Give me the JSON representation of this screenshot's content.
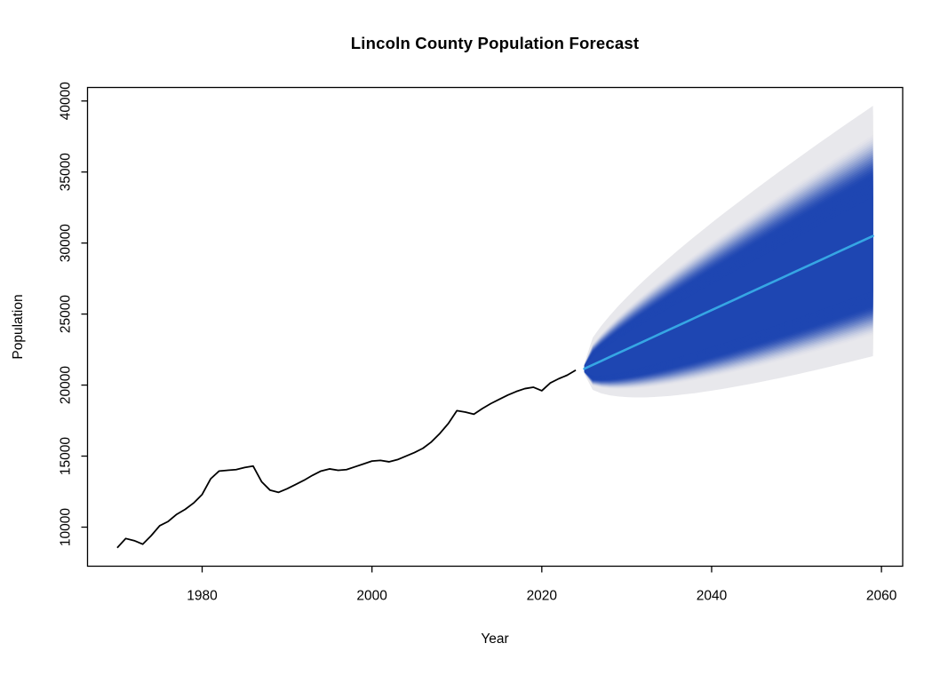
{
  "chart_data": {
    "type": "line",
    "title": "Lincoln County Population Forecast",
    "xlabel": "Year",
    "ylabel": "Population",
    "xlim": [
      1966.5,
      2062.5
    ],
    "ylim": [
      7250,
      40950
    ],
    "x_ticks": [
      1980,
      2000,
      2020,
      2040,
      2060
    ],
    "y_ticks": [
      10000,
      15000,
      20000,
      25000,
      30000,
      35000,
      40000
    ],
    "grid": false,
    "legend": "none",
    "colors": {
      "history_line": "#000000",
      "median_line": "#36a6e4",
      "fan_core": "#1e46b2",
      "fan_outer": "#e8e8ec",
      "axis": "#000000",
      "background": "#ffffff"
    },
    "series": [
      {
        "name": "historical-population",
        "x": [
          1970,
          1971,
          1972,
          1973,
          1974,
          1975,
          1976,
          1977,
          1978,
          1979,
          1980,
          1981,
          1982,
          1983,
          1984,
          1985,
          1986,
          1987,
          1988,
          1989,
          1990,
          1991,
          1992,
          1993,
          1994,
          1995,
          1996,
          1997,
          1998,
          1999,
          2000,
          2001,
          2002,
          2003,
          2004,
          2005,
          2006,
          2007,
          2008,
          2009,
          2010,
          2011,
          2012,
          2013,
          2014,
          2015,
          2016,
          2017,
          2018,
          2019,
          2020,
          2021,
          2022,
          2023,
          2024
        ],
        "y": [
          8550,
          9200,
          9050,
          8800,
          9400,
          10100,
          10400,
          10900,
          11250,
          11700,
          12300,
          13400,
          13950,
          14000,
          14050,
          14200,
          14300,
          13200,
          12600,
          12450,
          12700,
          13000,
          13300,
          13650,
          13950,
          14100,
          14000,
          14050,
          14250,
          14450,
          14650,
          14700,
          14600,
          14750,
          15000,
          15250,
          15550,
          16000,
          16600,
          17300,
          18200,
          18100,
          17950,
          18350,
          18700,
          19000,
          19300,
          19550,
          19750,
          19850,
          19600,
          20150,
          20450,
          20700,
          21050
        ]
      },
      {
        "name": "forecast-median",
        "x": [
          2025,
          2026,
          2027,
          2028,
          2029,
          2030,
          2031,
          2032,
          2033,
          2034,
          2035,
          2036,
          2037,
          2038,
          2039,
          2040,
          2041,
          2042,
          2043,
          2044,
          2045,
          2046,
          2047,
          2048,
          2049,
          2050,
          2051,
          2052,
          2053,
          2054,
          2055,
          2056,
          2057,
          2058,
          2059
        ],
        "y": [
          21150,
          21425,
          21700,
          21975,
          22250,
          22525,
          22800,
          23075,
          23350,
          23625,
          23900,
          24175,
          24450,
          24725,
          25000,
          25275,
          25550,
          25825,
          26100,
          26375,
          26650,
          26925,
          27200,
          27475,
          27750,
          28025,
          28300,
          28575,
          28850,
          29125,
          29400,
          29675,
          29950,
          30225,
          30500
        ]
      }
    ],
    "bands": [
      {
        "name": "forecast-outer-interval",
        "x": [
          2025,
          2026,
          2027,
          2028,
          2029,
          2030,
          2031,
          2032,
          2033,
          2034,
          2035,
          2036,
          2037,
          2038,
          2039,
          2040,
          2041,
          2042,
          2043,
          2044,
          2045,
          2046,
          2047,
          2048,
          2049,
          2050,
          2051,
          2052,
          2053,
          2054,
          2055,
          2056,
          2057,
          2058,
          2059
        ],
        "upper": [
          21500,
          23340,
          24170,
          24890,
          25560,
          26180,
          26780,
          27350,
          27900,
          28430,
          28950,
          29470,
          29970,
          30460,
          30940,
          31420,
          31890,
          32350,
          32810,
          33260,
          33710,
          34160,
          34600,
          35040,
          35470,
          35900,
          36330,
          36760,
          37180,
          37600,
          38020,
          38430,
          38840,
          39250,
          39660
        ],
        "lower": [
          20800,
          19660,
          19420,
          19280,
          19200,
          19150,
          19130,
          19130,
          19150,
          19190,
          19230,
          19290,
          19360,
          19430,
          19520,
          19610,
          19700,
          19800,
          19910,
          20020,
          20130,
          20250,
          20370,
          20490,
          20620,
          20750,
          20890,
          21020,
          21160,
          21300,
          21450,
          21590,
          21740,
          21890,
          22040
        ]
      },
      {
        "name": "forecast-core-interval",
        "x": [
          2025,
          2026,
          2027,
          2028,
          2029,
          2030,
          2031,
          2032,
          2033,
          2034,
          2035,
          2036,
          2037,
          2038,
          2039,
          2040,
          2041,
          2042,
          2043,
          2044,
          2045,
          2046,
          2047,
          2048,
          2049,
          2050,
          2051,
          2052,
          2053,
          2054,
          2055,
          2056,
          2057,
          2058,
          2059
        ],
        "upper": [
          21300,
          22000,
          22440,
          22850,
          23250,
          23630,
          24000,
          24360,
          24720,
          25070,
          25420,
          25770,
          26110,
          26450,
          26790,
          27130,
          27460,
          27790,
          28120,
          28450,
          28780,
          29100,
          29430,
          29750,
          30080,
          30400,
          30720,
          31040,
          31360,
          31680,
          32000,
          32310,
          32630,
          32950,
          33260
        ],
        "lower": [
          21000,
          20620,
          20660,
          20740,
          20850,
          20980,
          21120,
          21270,
          21430,
          21590,
          21760,
          21940,
          22120,
          22300,
          22490,
          22680,
          22870,
          23060,
          23260,
          23460,
          23660,
          23860,
          24070,
          24280,
          24480,
          24690,
          24900,
          25110,
          25330,
          25540,
          25760,
          25970,
          26190,
          26410,
          26620
        ]
      }
    ]
  }
}
